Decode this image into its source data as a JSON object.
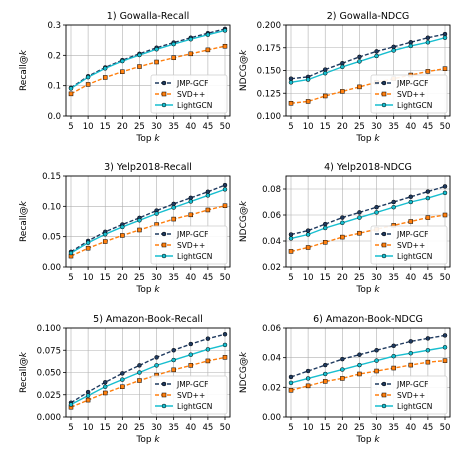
{
  "chart_data": [
    {
      "type": "line",
      "title": "1) Gowalla-Recall",
      "xlabel": "Top k",
      "ylabel": "Recall@k",
      "x": [
        5,
        10,
        15,
        20,
        25,
        30,
        35,
        40,
        45,
        50
      ],
      "ylim": [
        0.0,
        0.3
      ],
      "yticks": [
        0.0,
        0.1,
        0.2,
        0.3
      ],
      "ytick_labels": [
        "0.0",
        "0.1",
        "0.2",
        "0.3"
      ],
      "grid": true,
      "legend": "lower-right",
      "series": [
        {
          "name": "JMP-GCF",
          "values": [
            0.093,
            0.131,
            0.16,
            0.184,
            0.205,
            0.225,
            0.242,
            0.258,
            0.273,
            0.287
          ],
          "color": "#1f3a5f"
        },
        {
          "name": "SVD++",
          "values": [
            0.073,
            0.104,
            0.127,
            0.146,
            0.163,
            0.178,
            0.192,
            0.205,
            0.218,
            0.23
          ],
          "color": "#ff7f0e"
        },
        {
          "name": "LightGCN",
          "values": [
            0.091,
            0.128,
            0.157,
            0.181,
            0.201,
            0.22,
            0.237,
            0.253,
            0.268,
            0.282
          ],
          "color": "#17becf"
        }
      ]
    },
    {
      "type": "line",
      "title": "2) Gowalla-NDCG",
      "xlabel": "Top k",
      "ylabel": "NDCG@k",
      "x": [
        5,
        10,
        15,
        20,
        25,
        30,
        35,
        40,
        45,
        50
      ],
      "ylim": [
        0.1,
        0.2
      ],
      "yticks": [
        0.1,
        0.125,
        0.15,
        0.175,
        0.2
      ],
      "ytick_labels": [
        "0.100",
        "0.125",
        "0.150",
        "0.175",
        "0.200"
      ],
      "grid": true,
      "legend": "lower-right",
      "series": [
        {
          "name": "JMP-GCF",
          "values": [
            0.141,
            0.143,
            0.151,
            0.158,
            0.165,
            0.171,
            0.176,
            0.181,
            0.186,
            0.19
          ],
          "color": "#1f3a5f"
        },
        {
          "name": "SVD++",
          "values": [
            0.114,
            0.116,
            0.122,
            0.127,
            0.132,
            0.137,
            0.141,
            0.145,
            0.149,
            0.152
          ],
          "color": "#ff7f0e"
        },
        {
          "name": "LightGCN",
          "values": [
            0.137,
            0.14,
            0.147,
            0.154,
            0.16,
            0.166,
            0.172,
            0.177,
            0.181,
            0.186
          ],
          "color": "#17becf"
        }
      ]
    },
    {
      "type": "line",
      "title": "3) Yelp2018-Recall",
      "xlabel": "Top k",
      "ylabel": "Recall@k",
      "x": [
        5,
        10,
        15,
        20,
        25,
        30,
        35,
        40,
        45,
        50
      ],
      "ylim": [
        0.0,
        0.15
      ],
      "yticks": [
        0.0,
        0.05,
        0.1,
        0.15
      ],
      "ytick_labels": [
        "0.00",
        "0.05",
        "0.10",
        "0.15"
      ],
      "grid": true,
      "legend": "lower-right",
      "series": [
        {
          "name": "JMP-GCF",
          "values": [
            0.025,
            0.043,
            0.058,
            0.07,
            0.081,
            0.093,
            0.104,
            0.114,
            0.124,
            0.135
          ],
          "color": "#1f3a5f"
        },
        {
          "name": "SVD++",
          "values": [
            0.018,
            0.031,
            0.042,
            0.052,
            0.061,
            0.07,
            0.079,
            0.086,
            0.094,
            0.101
          ],
          "color": "#ff7f0e"
        },
        {
          "name": "LightGCN",
          "values": [
            0.023,
            0.04,
            0.054,
            0.066,
            0.077,
            0.088,
            0.098,
            0.108,
            0.118,
            0.128
          ],
          "color": "#17becf"
        }
      ]
    },
    {
      "type": "line",
      "title": "4) Yelp2018-NDCG",
      "xlabel": "Top k",
      "ylabel": "NDCG@k",
      "x": [
        5,
        10,
        15,
        20,
        25,
        30,
        35,
        40,
        45,
        50
      ],
      "ylim": [
        0.02,
        0.09
      ],
      "yticks": [
        0.02,
        0.04,
        0.06,
        0.08
      ],
      "ytick_labels": [
        "0.02",
        "0.04",
        "0.06",
        "0.08"
      ],
      "grid": true,
      "legend": "lower-right",
      "series": [
        {
          "name": "JMP-GCF",
          "values": [
            0.045,
            0.048,
            0.053,
            0.058,
            0.062,
            0.066,
            0.07,
            0.074,
            0.078,
            0.082
          ],
          "color": "#1f3a5f"
        },
        {
          "name": "SVD++",
          "values": [
            0.032,
            0.035,
            0.039,
            0.043,
            0.046,
            0.049,
            0.052,
            0.055,
            0.058,
            0.06
          ],
          "color": "#ff7f0e"
        },
        {
          "name": "LightGCN",
          "values": [
            0.042,
            0.045,
            0.05,
            0.054,
            0.058,
            0.062,
            0.066,
            0.07,
            0.073,
            0.077
          ],
          "color": "#17becf"
        }
      ]
    },
    {
      "type": "line",
      "title": "5) Amazon-Book-Recall",
      "xlabel": "Top k",
      "ylabel": "Recall@k",
      "x": [
        5,
        10,
        15,
        20,
        25,
        30,
        35,
        40,
        45,
        50
      ],
      "ylim": [
        0.0,
        0.1
      ],
      "yticks": [
        0.0,
        0.025,
        0.05,
        0.075,
        0.1
      ],
      "ytick_labels": [
        "0.000",
        "0.025",
        "0.050",
        "0.075",
        "0.100"
      ],
      "grid": true,
      "legend": "lower-right",
      "series": [
        {
          "name": "JMP-GCF",
          "values": [
            0.016,
            0.028,
            0.039,
            0.049,
            0.058,
            0.067,
            0.075,
            0.082,
            0.088,
            0.093
          ],
          "color": "#1f3a5f"
        },
        {
          "name": "SVD++",
          "values": [
            0.011,
            0.019,
            0.027,
            0.034,
            0.041,
            0.047,
            0.053,
            0.058,
            0.063,
            0.067
          ],
          "color": "#ff7f0e"
        },
        {
          "name": "LightGCN",
          "values": [
            0.014,
            0.024,
            0.034,
            0.042,
            0.05,
            0.058,
            0.064,
            0.07,
            0.076,
            0.081
          ],
          "color": "#17becf"
        }
      ]
    },
    {
      "type": "line",
      "title": "6) Amazon-Book-NDCG",
      "xlabel": "Top k",
      "ylabel": "NDCG@k",
      "x": [
        5,
        10,
        15,
        20,
        25,
        30,
        35,
        40,
        45,
        50
      ],
      "ylim": [
        0.0,
        0.06
      ],
      "yticks": [
        0.0,
        0.02,
        0.04,
        0.06
      ],
      "ytick_labels": [
        "0.00",
        "0.02",
        "0.04",
        "0.06"
      ],
      "grid": true,
      "legend": "lower-right",
      "series": [
        {
          "name": "JMP-GCF",
          "values": [
            0.027,
            0.031,
            0.035,
            0.039,
            0.042,
            0.045,
            0.048,
            0.051,
            0.053,
            0.055
          ],
          "color": "#1f3a5f"
        },
        {
          "name": "SVD++",
          "values": [
            0.018,
            0.021,
            0.024,
            0.026,
            0.029,
            0.031,
            0.033,
            0.035,
            0.037,
            0.038
          ],
          "color": "#ff7f0e"
        },
        {
          "name": "LightGCN",
          "values": [
            0.023,
            0.026,
            0.029,
            0.032,
            0.035,
            0.038,
            0.041,
            0.043,
            0.045,
            0.047
          ],
          "color": "#17becf"
        }
      ]
    }
  ]
}
